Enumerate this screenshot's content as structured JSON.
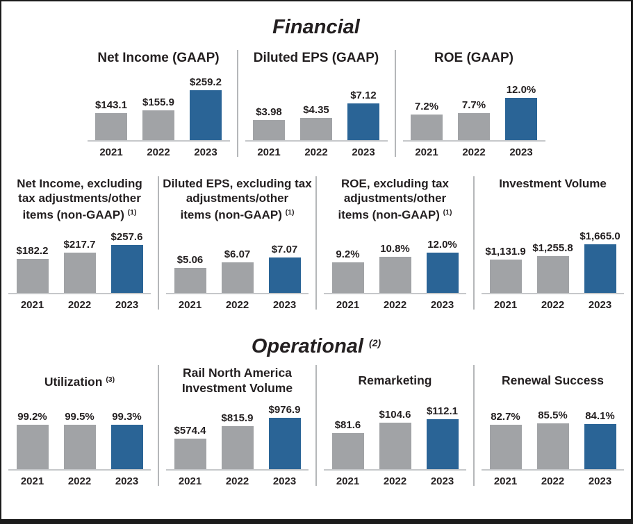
{
  "sections": {
    "financial": {
      "title": "Financial",
      "sup": ""
    },
    "operational": {
      "title": "Operational",
      "sup": "(2)"
    }
  },
  "colors": {
    "bar_default": "#a1a3a6",
    "bar_highlight": "#2a6496",
    "divider": "#b5b7b9",
    "axis_line": "#c6c8ca",
    "text": "#231f20",
    "border": "#1b1b1b",
    "background": "#ffffff"
  },
  "chart_data": [
    {
      "type": "bar",
      "section": "Financial",
      "row": 1,
      "title": "Net Income (GAAP)",
      "title_lines": [
        "Net Income (GAAP)"
      ],
      "sup": "",
      "categories": [
        "2021",
        "2022",
        "2023"
      ],
      "values": [
        143.1,
        155.9,
        259.2
      ],
      "labels": [
        "$143.1",
        "$155.9",
        "$259.2"
      ],
      "ylim": [
        0,
        290
      ],
      "highlight_index": 2
    },
    {
      "type": "bar",
      "section": "Financial",
      "row": 1,
      "title": "Diluted EPS (GAAP)",
      "title_lines": [
        "Diluted EPS (GAAP)"
      ],
      "sup": "",
      "categories": [
        "2021",
        "2022",
        "2023"
      ],
      "values": [
        3.98,
        4.35,
        7.12
      ],
      "labels": [
        "$3.98",
        "$4.35",
        "$7.12"
      ],
      "ylim": [
        0,
        10.8
      ],
      "highlight_index": 2
    },
    {
      "type": "bar",
      "section": "Financial",
      "row": 1,
      "title": "ROE (GAAP)",
      "title_lines": [
        "ROE (GAAP)"
      ],
      "sup": "",
      "categories": [
        "2021",
        "2022",
        "2023"
      ],
      "values": [
        7.2,
        7.7,
        12.0
      ],
      "labels": [
        "7.2%",
        "7.7%",
        "12.0%"
      ],
      "ylim": [
        0,
        15.7
      ],
      "highlight_index": 2
    },
    {
      "type": "bar",
      "section": "Financial",
      "row": 2,
      "title": "Net Income, excluding tax adjustments/other items (non-GAAP)",
      "title_lines": [
        "Net Income, excluding",
        "tax adjustments/other",
        "items (non-GAAP)"
      ],
      "sup": "(1)",
      "categories": [
        "2021",
        "2022",
        "2023"
      ],
      "values": [
        182.2,
        217.7,
        257.6
      ],
      "labels": [
        "$182.2",
        "$217.7",
        "$257.6"
      ],
      "ylim": [
        0,
        300
      ],
      "highlight_index": 2
    },
    {
      "type": "bar",
      "section": "Financial",
      "row": 2,
      "title": "Diluted EPS, excluding tax adjustments/other items (non-GAAP)",
      "title_lines": [
        "Diluted EPS, excluding tax",
        "adjustments/other",
        "items (non-GAAP)"
      ],
      "sup": "(1)",
      "categories": [
        "2021",
        "2022",
        "2023"
      ],
      "values": [
        5.06,
        6.07,
        7.07
      ],
      "labels": [
        "$5.06",
        "$6.07",
        "$7.07"
      ],
      "ylim": [
        0,
        11.1
      ],
      "highlight_index": 2
    },
    {
      "type": "bar",
      "section": "Financial",
      "row": 2,
      "title": "ROE, excluding tax adjustments/other items (non-GAAP)",
      "title_lines": [
        "ROE, excluding tax",
        "adjustments/other",
        "items (non-GAAP)"
      ],
      "sup": "(1)",
      "categories": [
        "2021",
        "2022",
        "2023"
      ],
      "values": [
        9.2,
        10.8,
        12.0
      ],
      "labels": [
        "9.2%",
        "10.8%",
        "12.0%"
      ],
      "ylim": [
        0,
        16.6
      ],
      "highlight_index": 2
    },
    {
      "type": "bar",
      "section": "Financial",
      "row": 2,
      "title": "Investment Volume",
      "title_lines": [
        "Investment Volume"
      ],
      "sup": "",
      "categories": [
        "2021",
        "2022",
        "2023"
      ],
      "values": [
        1131.9,
        1255.8,
        1665.0
      ],
      "labels": [
        "$1,131.9",
        "$1,255.8",
        "$1,665.0"
      ],
      "ylim": [
        0,
        1900
      ],
      "highlight_index": 2
    },
    {
      "type": "bar",
      "section": "Operational",
      "row": 3,
      "title": "Utilization",
      "title_lines": [
        "Utilization"
      ],
      "sup": "(3)",
      "categories": [
        "2021",
        "2022",
        "2023"
      ],
      "values": [
        99.2,
        99.5,
        99.3
      ],
      "labels": [
        "99.2%",
        "99.5%",
        "99.3%"
      ],
      "ylim": [
        0,
        124
      ],
      "highlight_index": 2
    },
    {
      "type": "bar",
      "section": "Operational",
      "row": 3,
      "title": "Rail North America Investment Volume",
      "title_lines": [
        "Rail North America",
        "Investment Volume"
      ],
      "sup": "",
      "categories": [
        "2021",
        "2022",
        "2023"
      ],
      "values": [
        574.4,
        815.9,
        976.9
      ],
      "labels": [
        "$574.4",
        "$815.9",
        "$976.9"
      ],
      "ylim": [
        0,
        1056
      ],
      "highlight_index": 2
    },
    {
      "type": "bar",
      "section": "Operational",
      "row": 3,
      "title": "Remarketing",
      "title_lines": [
        "Remarketing"
      ],
      "sup": "",
      "categories": [
        "2021",
        "2022",
        "2023"
      ],
      "values": [
        81.6,
        104.6,
        112.1
      ],
      "labels": [
        "$81.6",
        "$104.6",
        "$112.1"
      ],
      "ylim": [
        0,
        125
      ],
      "highlight_index": 2
    },
    {
      "type": "bar",
      "section": "Operational",
      "row": 3,
      "title": "Renewal Success",
      "title_lines": [
        "Renewal Success"
      ],
      "sup": "",
      "categories": [
        "2021",
        "2022",
        "2023"
      ],
      "values": [
        82.7,
        85.5,
        84.1
      ],
      "labels": [
        "82.7%",
        "85.5%",
        "84.1%"
      ],
      "ylim": [
        0,
        104
      ],
      "highlight_index": 2
    }
  ]
}
